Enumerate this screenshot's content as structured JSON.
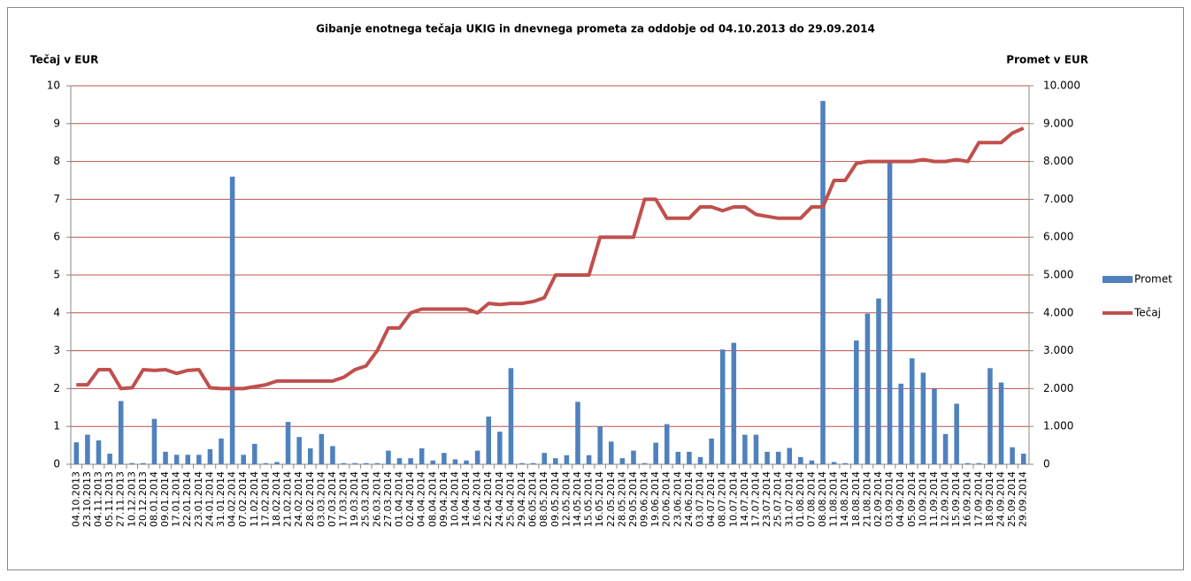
{
  "chart_data": {
    "type": "bar_line",
    "title": "Gibanje enotnega tečaja UKIG in dnevnega prometa za oddobje od 04.10.2013  do 29.09.2014",
    "ylabel": "Tečaj v EUR",
    "y2label": "Promet v EUR",
    "categories": [
      "04.10.2013",
      "23.10.2013",
      "04.11.2013",
      "05.11.2013",
      "27.11.2013",
      "10.12.2013",
      "20.12.2013",
      "08.01.2014",
      "09.01.2014",
      "17.01.2014",
      "22.01.2014",
      "23.01.2014",
      "24.01.2014",
      "31.01.2014",
      "04.02.2014",
      "07.02.2014",
      "11.02.2014",
      "17.02.2014",
      "18.02.2014",
      "21.02.2014",
      "24.02.2014",
      "28.02.2014",
      "03.03.2014",
      "07.03.2014",
      "17.03.2014",
      "19.03.2014",
      "25.03.2014",
      "26.03.2014",
      "27.03.2014",
      "01.04.2014",
      "02.04.2014",
      "04.04.2014",
      "08.04.2014",
      "09.04.2014",
      "10.04.2014",
      "14.04.2014",
      "16.04.2014",
      "22.04.2014",
      "24.04.2014",
      "25.04.2014",
      "29.04.2014",
      "06.05.2014",
      "08.05.2014",
      "09.05.2014",
      "12.05.2014",
      "14.05.2014",
      "15.05.2014",
      "16.05.2014",
      "22.05.2014",
      "28.05.2014",
      "29.05.2014",
      "09.06.2014",
      "19.06.2014",
      "20.06.2014",
      "23.06.2014",
      "24.06.2014",
      "03.07.2014",
      "04.07.2014",
      "08.07.2014",
      "10.07.2014",
      "14.07.2014",
      "17.07.2014",
      "23.07.2014",
      "25.07.2014",
      "31.07.2014",
      "01.08.2014",
      "07.08.2014",
      "08.08.2014",
      "11.08.2014",
      "14.08.2014",
      "18.08.2014",
      "21.08.2014",
      "02.09.2014",
      "03.09.2014",
      "04.09.2014",
      "05.09.2014",
      "10.09.2014",
      "11.09.2014",
      "12.09.2014",
      "15.09.2014",
      "16.09.2014",
      "17.09.2014",
      "18.09.2014",
      "24.09.2014",
      "25.09.2014",
      "29.09.2014"
    ],
    "series": [
      {
        "name": "Promet",
        "type": "bar",
        "axis": "y2",
        "color": "#4f81bd",
        "values": [
          580,
          780,
          630,
          280,
          1670,
          30,
          30,
          1200,
          330,
          250,
          250,
          250,
          400,
          680,
          7600,
          250,
          540,
          30,
          60,
          1120,
          720,
          420,
          800,
          480,
          30,
          30,
          30,
          30,
          360,
          160,
          160,
          420,
          100,
          300,
          130,
          100,
          360,
          1260,
          860,
          2540,
          30,
          30,
          300,
          160,
          240,
          1650,
          240,
          1000,
          600,
          160,
          360,
          30,
          570,
          1060,
          330,
          330,
          190,
          680,
          3030,
          3210,
          780,
          780,
          330,
          330,
          430,
          190,
          100,
          9600,
          60,
          30,
          3270,
          3980,
          4380,
          8000,
          2130,
          2800,
          2420,
          2000,
          800,
          1600,
          30,
          30,
          2540,
          2160,
          450,
          280
        ]
      },
      {
        "name": "Tečaj",
        "type": "line",
        "color": "#c0504d",
        "values": [
          2.1,
          2.1,
          2.5,
          2.5,
          2.0,
          2.02,
          2.5,
          2.48,
          2.5,
          2.4,
          2.48,
          2.5,
          2.02,
          2.0,
          2.0,
          2.0,
          2.05,
          2.1,
          2.2,
          2.2,
          2.2,
          2.2,
          2.2,
          2.2,
          2.3,
          2.5,
          2.6,
          3.0,
          3.6,
          3.6,
          4.0,
          4.1,
          4.1,
          4.1,
          4.1,
          4.1,
          4.0,
          4.25,
          4.22,
          4.25,
          4.25,
          4.3,
          4.4,
          5.0,
          5.0,
          5.0,
          5.0,
          6.0,
          6.0,
          6.0,
          6.0,
          7.0,
          7.0,
          6.5,
          6.5,
          6.5,
          6.8,
          6.8,
          6.7,
          6.8,
          6.8,
          6.6,
          6.55,
          6.5,
          6.5,
          6.5,
          6.8,
          6.8,
          7.5,
          7.5,
          7.95,
          8.0,
          8.0,
          8.0,
          8.0,
          8.0,
          8.05,
          8.0,
          8.0,
          8.05,
          8.0,
          8.5,
          8.5,
          8.5,
          8.75,
          8.88
        ]
      }
    ],
    "ylim": [
      0,
      10
    ],
    "yticks": [
      0,
      1,
      2,
      3,
      4,
      5,
      6,
      7,
      8,
      9,
      10
    ],
    "y2lim": [
      0,
      10000
    ],
    "y2ticks": [
      0,
      {
        "value": 1000,
        "label": "1.000"
      },
      {
        "value": 2000,
        "label": "2.000"
      },
      {
        "value": 3000,
        "label": "3.000"
      },
      {
        "value": 4000,
        "label": "4.000"
      },
      {
        "value": 5000,
        "label": "5.000"
      },
      {
        "value": 6000,
        "label": "6.000"
      },
      {
        "value": 7000,
        "label": "7.000"
      },
      {
        "value": 8000,
        "label": "8.000"
      },
      {
        "value": 9000,
        "label": "9.000"
      },
      {
        "value": 10000,
        "label": "10.000"
      }
    ],
    "grid": true,
    "grid_color": "#c0504d",
    "legend": "right"
  }
}
